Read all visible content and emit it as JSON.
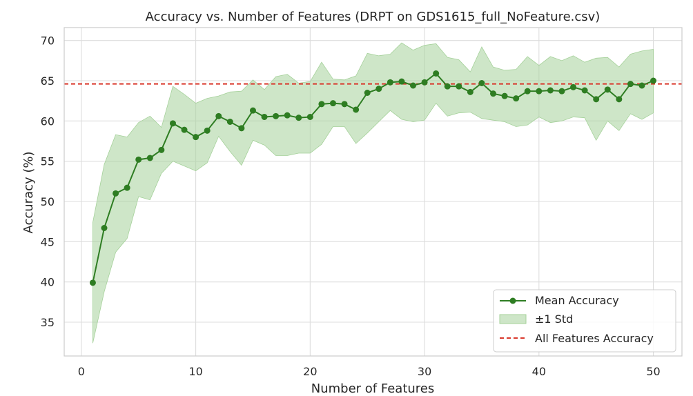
{
  "chart_data": {
    "type": "line",
    "title": "Accuracy vs. Number of Features (DRPT on GDS1615_full_NoFeature.csv)",
    "xlabel": "Number of Features",
    "ylabel": "Accuracy (%)",
    "xlim": [
      -1.5,
      52.5
    ],
    "ylim": [
      30.8,
      71.6
    ],
    "xticks": [
      0,
      10,
      20,
      30,
      40,
      50
    ],
    "yticks": [
      35,
      40,
      45,
      50,
      55,
      60,
      65,
      70
    ],
    "grid": true,
    "legend_position": "bottom-right",
    "x": [
      1,
      2,
      3,
      4,
      5,
      6,
      7,
      8,
      9,
      10,
      11,
      12,
      13,
      14,
      15,
      16,
      17,
      18,
      19,
      20,
      21,
      22,
      23,
      24,
      25,
      26,
      27,
      28,
      29,
      30,
      31,
      32,
      33,
      34,
      35,
      36,
      37,
      38,
      39,
      40,
      41,
      42,
      43,
      44,
      45,
      46,
      47,
      48,
      49,
      50
    ],
    "series": [
      {
        "name": "Mean Accuracy",
        "color": "#2e7d22",
        "values": [
          39.9,
          46.7,
          51.0,
          51.7,
          55.2,
          55.4,
          56.4,
          59.7,
          58.9,
          58.0,
          58.8,
          60.6,
          59.9,
          59.1,
          61.3,
          60.5,
          60.6,
          60.7,
          60.4,
          60.5,
          62.1,
          62.2,
          62.1,
          61.4,
          63.5,
          64.0,
          64.8,
          64.9,
          64.4,
          64.8,
          65.9,
          64.3,
          64.3,
          63.6,
          64.7,
          63.4,
          63.1,
          62.8,
          63.7,
          63.7,
          63.8,
          63.7,
          64.2,
          63.8,
          62.7,
          63.9,
          62.7,
          64.6,
          64.4,
          65.0
        ]
      },
      {
        "name": "±1 Std",
        "color": "#a5d19a",
        "upper": [
          47.4,
          54.6,
          58.3,
          58.0,
          59.8,
          60.6,
          59.2,
          64.3,
          63.3,
          62.2,
          62.8,
          63.1,
          63.6,
          63.7,
          65.1,
          63.9,
          65.5,
          65.8,
          64.7,
          64.9,
          67.3,
          65.2,
          65.1,
          65.6,
          68.4,
          68.1,
          68.3,
          69.7,
          68.8,
          69.4,
          69.6,
          67.9,
          67.6,
          66.1,
          69.2,
          66.7,
          66.3,
          66.4,
          68.0,
          66.9,
          68.0,
          67.5,
          68.1,
          67.3,
          67.8,
          67.9,
          66.7,
          68.3,
          68.7,
          68.9
        ],
        "lower": [
          32.4,
          38.8,
          43.7,
          45.4,
          50.6,
          50.2,
          53.5,
          55.0,
          54.4,
          53.8,
          54.8,
          58.1,
          56.2,
          54.5,
          57.6,
          57.0,
          55.7,
          55.7,
          56.0,
          56.0,
          57.1,
          59.3,
          59.3,
          57.2,
          58.5,
          59.9,
          61.3,
          60.2,
          59.9,
          60.1,
          62.2,
          60.6,
          61.0,
          61.1,
          60.3,
          60.1,
          59.9,
          59.3,
          59.5,
          60.5,
          59.8,
          60.0,
          60.5,
          60.4,
          57.6,
          60.0,
          58.8,
          60.9,
          60.2,
          61.0
        ]
      },
      {
        "name": "All Features Accuracy",
        "color": "#d9372b",
        "reference_y": 64.6
      }
    ]
  }
}
